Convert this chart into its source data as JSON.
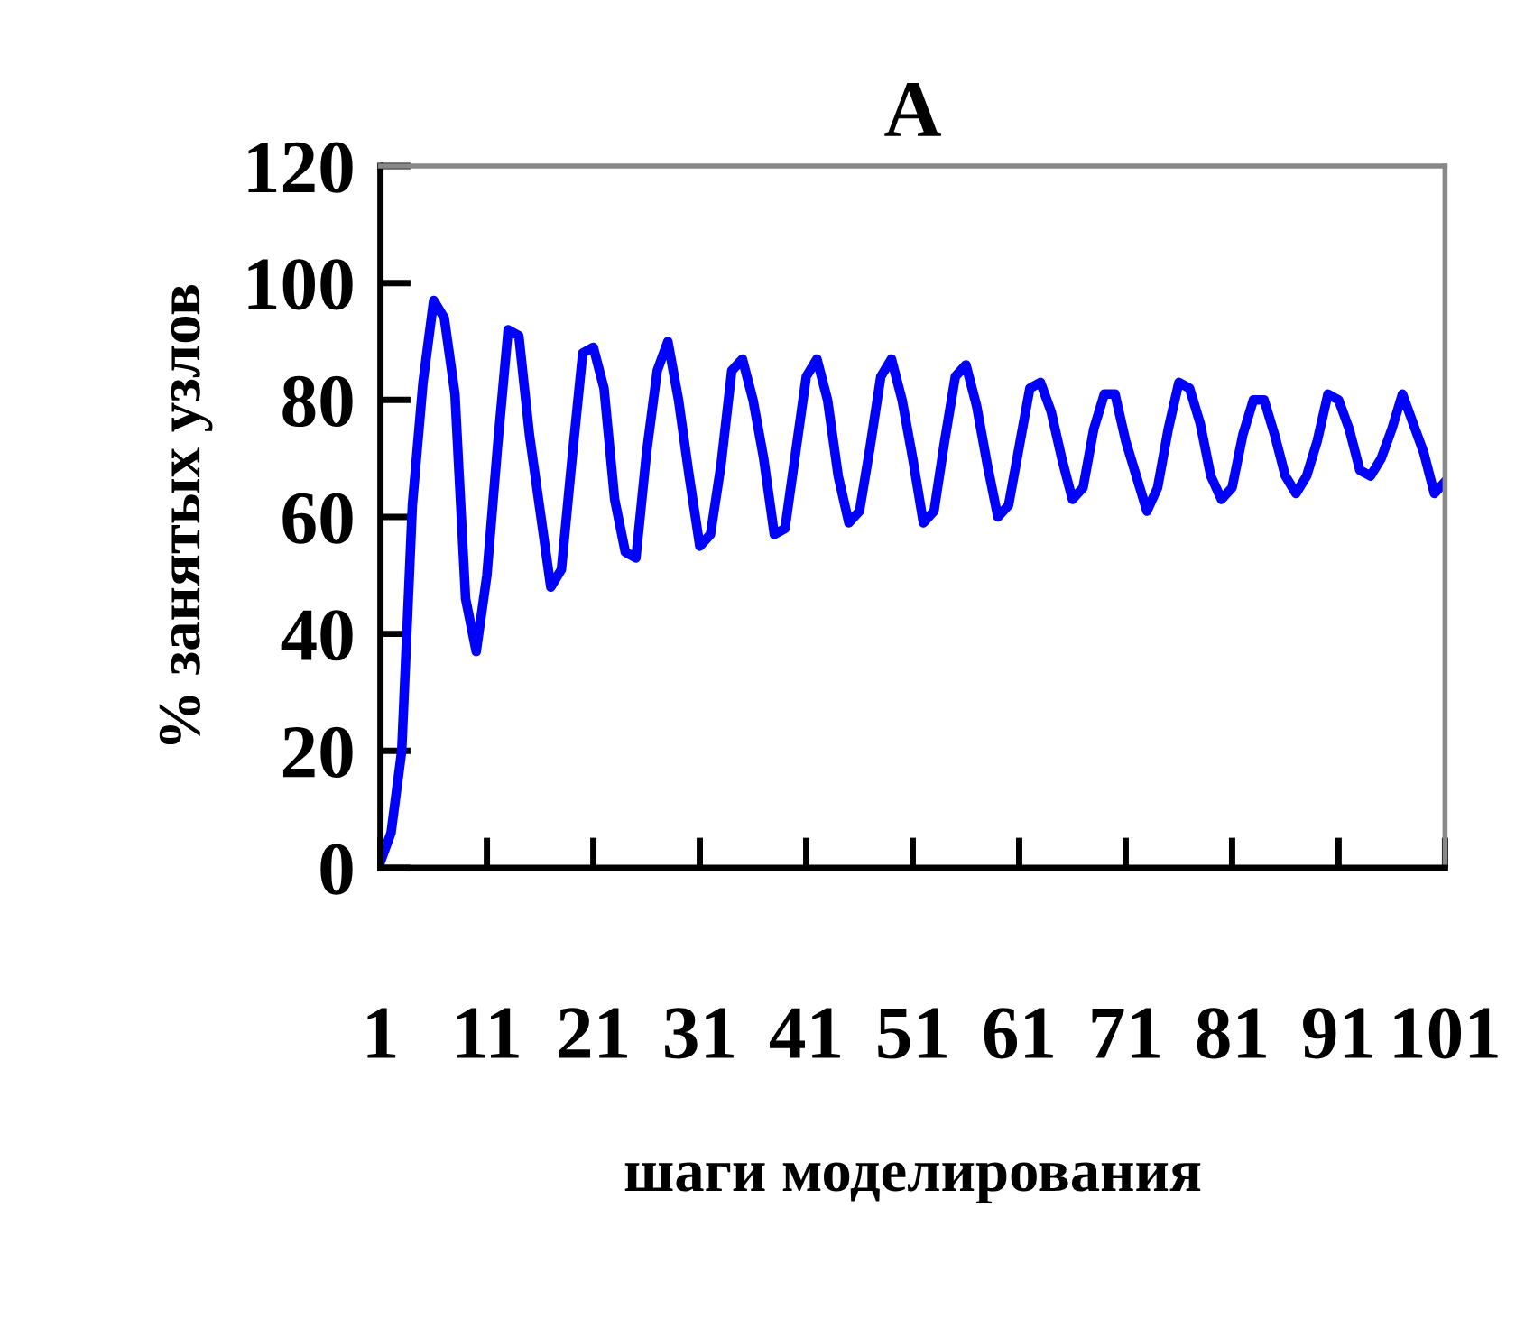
{
  "chart_data": {
    "type": "line",
    "title": "A",
    "xlabel": "шаги моделирования",
    "ylabel": "% занятых узлов",
    "x": [
      1,
      2,
      3,
      4,
      5,
      6,
      7,
      8,
      9,
      10,
      11,
      12,
      13,
      14,
      15,
      16,
      17,
      18,
      19,
      20,
      21,
      22,
      23,
      24,
      25,
      26,
      27,
      28,
      29,
      30,
      31,
      32,
      33,
      34,
      35,
      36,
      37,
      38,
      39,
      40,
      41,
      42,
      43,
      44,
      45,
      46,
      47,
      48,
      49,
      50,
      51,
      52,
      53,
      54,
      55,
      56,
      57,
      58,
      59,
      60,
      61,
      62,
      63,
      64,
      65,
      66,
      67,
      68,
      69,
      70,
      71,
      72,
      73,
      74,
      75,
      76,
      77,
      78,
      79,
      80,
      81,
      82,
      83,
      84,
      85,
      86,
      87,
      88,
      89,
      90,
      91,
      92,
      93,
      94,
      95,
      96,
      97,
      98,
      99,
      100,
      101
    ],
    "series": [
      {
        "color": "#0000ff",
        "values": [
          1,
          6,
          20,
          62,
          83,
          97,
          94,
          81,
          46,
          37,
          50,
          72,
          92,
          91,
          74,
          61,
          48,
          51,
          70,
          88,
          89,
          82,
          63,
          54,
          53,
          71,
          85,
          90,
          80,
          67,
          55,
          57,
          69,
          85,
          87,
          80,
          70,
          57,
          58,
          71,
          84,
          87,
          80,
          67,
          59,
          61,
          72,
          84,
          87,
          80,
          70,
          59,
          61,
          73,
          84,
          86,
          79,
          69,
          60,
          62,
          72,
          82,
          83,
          78,
          70,
          63,
          65,
          75,
          81,
          81,
          73,
          67,
          61,
          65,
          75,
          83,
          82,
          76,
          67,
          63,
          65,
          74,
          80,
          80,
          74,
          67,
          64,
          67,
          73,
          81,
          80,
          75,
          68,
          67,
          70,
          75,
          81,
          76,
          71,
          64,
          66
        ]
      }
    ],
    "xlim": [
      1,
      101
    ],
    "xticks": [
      1,
      11,
      21,
      31,
      41,
      51,
      61,
      71,
      81,
      91,
      101
    ],
    "ylim": [
      0,
      120
    ],
    "yticks": [
      0,
      20,
      40,
      60,
      80,
      100,
      120
    ],
    "grid": false,
    "marker": "none",
    "line_style": "solid"
  }
}
